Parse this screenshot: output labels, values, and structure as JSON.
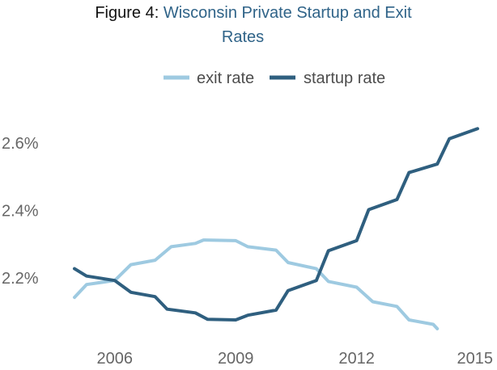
{
  "chart_data": {
    "type": "line",
    "title_prefix": "Figure 4:",
    "title_line1": "Wisconsin Private Startup and Exit",
    "title_line2": "Rates",
    "xlabel": "",
    "ylabel": "",
    "xlim": [
      2005,
      2015
    ],
    "ylim": [
      2.05,
      2.7
    ],
    "x_ticks": [
      2006,
      2009,
      2012,
      2015
    ],
    "y_ticks": [
      2.2,
      2.4,
      2.6
    ],
    "y_tick_labels": [
      "2.2%",
      "2.4%",
      "2.6%"
    ],
    "grid": false,
    "legend_position": "top-center",
    "series": [
      {
        "name": "exit rate",
        "color": "#9ecae1",
        "x": [
          2005,
          2005.3,
          2006,
          2006.4,
          2007,
          2007.4,
          2008,
          2008.2,
          2009,
          2009.3,
          2010,
          2010.3,
          2011,
          2011.3,
          2012,
          2012.4,
          2013,
          2013.3,
          2013.9,
          2014
        ],
        "y": [
          2.14,
          2.178,
          2.19,
          2.237,
          2.25,
          2.29,
          2.3,
          2.31,
          2.308,
          2.29,
          2.28,
          2.243,
          2.225,
          2.187,
          2.17,
          2.127,
          2.113,
          2.073,
          2.06,
          2.047
        ]
      },
      {
        "name": "startup rate",
        "color": "#2f5f7f",
        "x": [
          2005,
          2005.3,
          2006,
          2006.4,
          2007,
          2007.3,
          2008,
          2008.3,
          2009,
          2009.3,
          2010,
          2010.3,
          2011,
          2011.3,
          2012,
          2012.3,
          2013,
          2013.3,
          2014,
          2014.3,
          2015
        ],
        "y": [
          2.225,
          2.203,
          2.19,
          2.155,
          2.142,
          2.105,
          2.094,
          2.075,
          2.073,
          2.087,
          2.102,
          2.16,
          2.19,
          2.278,
          2.308,
          2.4,
          2.43,
          2.51,
          2.535,
          2.61,
          2.64
        ]
      }
    ]
  }
}
